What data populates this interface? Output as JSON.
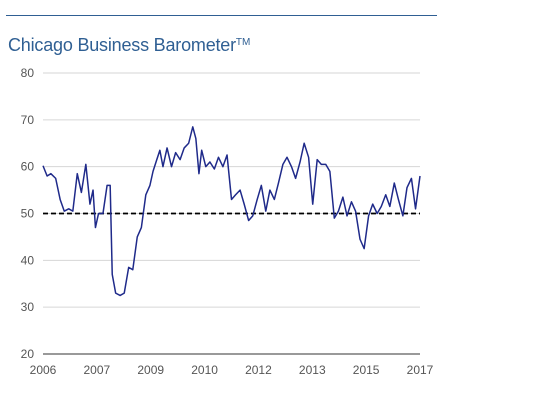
{
  "title": {
    "main": "Chicago Business Barometer",
    "superscript": "TM"
  },
  "colors": {
    "title": "#2f5f93",
    "line": "#1f2a8a",
    "reference_line": "#000000",
    "grid": "#d6d6d6"
  },
  "chart_data": {
    "type": "line",
    "title": "Chicago Business Barometer™",
    "xlabel": "",
    "ylabel": "",
    "xlim": [
      2006.0,
      2017.0
    ],
    "ylim": [
      20,
      80
    ],
    "y_ticks": [
      20,
      30,
      40,
      50,
      60,
      70,
      80
    ],
    "x_tick_labels": [
      "2006",
      "2007",
      "2009",
      "2010",
      "2012",
      "2013",
      "2015",
      "2017"
    ],
    "x_tick_positions": [
      2006.0,
      2007.5714,
      2009.1429,
      2010.7143,
      2012.2857,
      2013.8571,
      2015.4286,
      2017.0
    ],
    "grid": "horizontal",
    "legend": "none",
    "reference_line": {
      "y": 50,
      "style": "dashed"
    },
    "series": [
      {
        "x": [
          2006.0,
          2006.12,
          2006.23,
          2006.37,
          2006.5,
          2006.62,
          2006.75,
          2006.87,
          2007.0,
          2007.12,
          2007.25,
          2007.37,
          2007.46,
          2007.53,
          2007.62,
          2007.75,
          2007.87,
          2007.96,
          2008.02,
          2008.12,
          2008.25,
          2008.37,
          2008.5,
          2008.62,
          2008.75,
          2008.87,
          2009.0,
          2009.12,
          2009.21,
          2009.32,
          2009.41,
          2009.5,
          2009.62,
          2009.75,
          2009.87,
          2010.0,
          2010.12,
          2010.25,
          2010.37,
          2010.46,
          2010.55,
          2010.63,
          2010.75,
          2010.87,
          2011.0,
          2011.12,
          2011.25,
          2011.37,
          2011.5,
          2011.62,
          2011.75,
          2011.87,
          2012.0,
          2012.12,
          2012.25,
          2012.37,
          2012.5,
          2012.62,
          2012.75,
          2012.87,
          2013.0,
          2013.12,
          2013.25,
          2013.37,
          2013.5,
          2013.62,
          2013.75,
          2013.87,
          2014.0,
          2014.12,
          2014.25,
          2014.37,
          2014.5,
          2014.62,
          2014.75,
          2014.87,
          2015.0,
          2015.12,
          2015.25,
          2015.37,
          2015.5,
          2015.62,
          2015.75,
          2015.87,
          2016.0,
          2016.12,
          2016.25,
          2016.37,
          2016.5,
          2016.62,
          2016.75,
          2016.87,
          2017.0
        ],
        "y": [
          60.2,
          58.0,
          58.5,
          57.5,
          53.0,
          50.5,
          51.0,
          50.5,
          58.5,
          54.5,
          60.5,
          52.0,
          55.0,
          47.0,
          50.0,
          50.0,
          56.0,
          56.0,
          37.0,
          33.0,
          32.5,
          33.0,
          38.5,
          38.0,
          45.0,
          47.0,
          54.0,
          56.0,
          59.0,
          61.5,
          63.5,
          60.0,
          64.0,
          60.0,
          63.0,
          61.5,
          64.0,
          65.0,
          68.5,
          66.0,
          58.5,
          63.5,
          60.0,
          61.0,
          59.5,
          62.0,
          60.0,
          62.5,
          53.0,
          54.0,
          55.0,
          52.0,
          48.5,
          49.5,
          53.0,
          56.0,
          50.5,
          55.0,
          53.0,
          56.5,
          60.5,
          62.0,
          60.0,
          57.5,
          61.0,
          65.0,
          62.0,
          52.0,
          61.5,
          60.5,
          60.5,
          59.0,
          49.0,
          50.5,
          53.5,
          49.5,
          52.5,
          50.5,
          44.5,
          42.5,
          49.5,
          52.0,
          50.0,
          51.5,
          54.0,
          51.5,
          56.5,
          53.0,
          49.5,
          55.5,
          57.5,
          51.0,
          58.0
        ]
      }
    ]
  }
}
